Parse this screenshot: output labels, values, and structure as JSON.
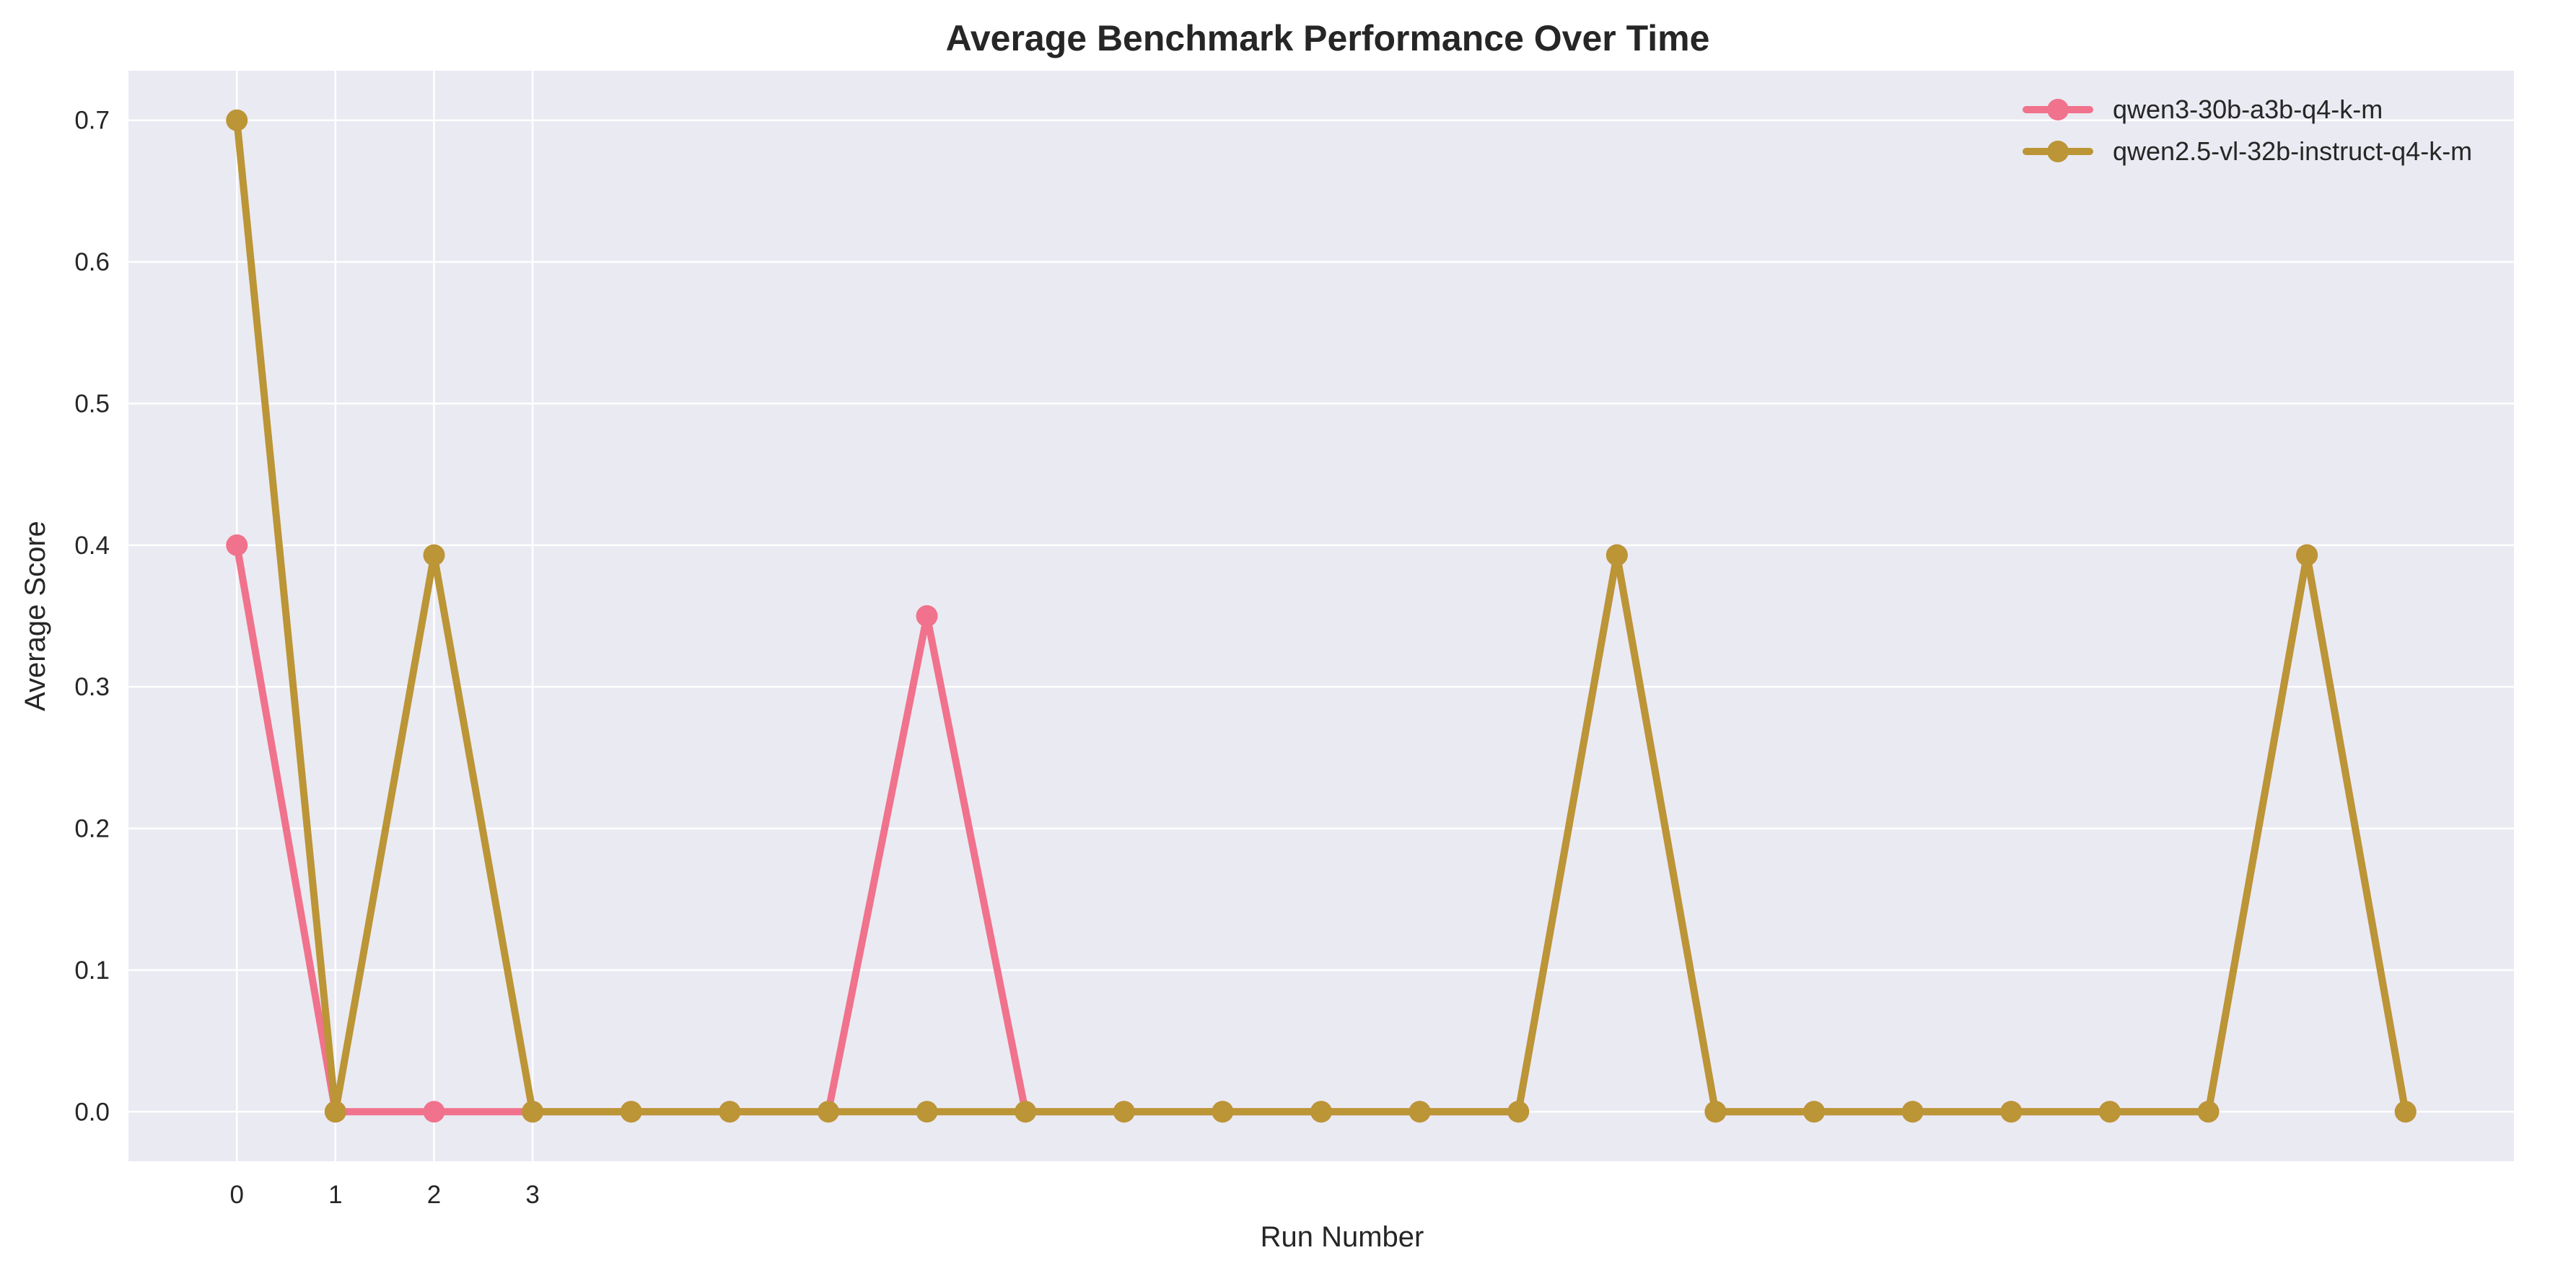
{
  "chart_data": {
    "type": "line",
    "title": "Average Benchmark Performance Over Time",
    "xlabel": "Run Number",
    "ylabel": "Average Score",
    "xlim": [
      -1.1,
      23.1
    ],
    "ylim": [
      -0.035,
      0.735
    ],
    "x_ticks": [
      0,
      1,
      2,
      3
    ],
    "y_ticks": [
      0.0,
      0.1,
      0.2,
      0.3,
      0.4,
      0.5,
      0.6,
      0.7
    ],
    "y_tick_format": 1,
    "grid": true,
    "legend_position": "top-right",
    "background_color": "#eaeaf2",
    "grid_color": "#ffffff",
    "series": [
      {
        "name": "qwen3-30b-a3b-q4-k-m",
        "color": "#f0728c",
        "x": [
          0,
          1,
          2,
          3,
          4,
          5,
          6,
          7,
          8,
          9,
          10,
          11,
          12,
          13,
          14,
          15,
          16,
          17,
          18,
          19,
          20,
          21,
          22
        ],
        "values": [
          0.4,
          0,
          0,
          0,
          0,
          0,
          0,
          0.35,
          0,
          0,
          0,
          0,
          0,
          0,
          0.393,
          0,
          0,
          0,
          0,
          0,
          0,
          0.393,
          0
        ]
      },
      {
        "name": "qwen2.5-vl-32b-instruct-q4-k-m",
        "color": "#bb9536",
        "x": [
          0,
          1,
          2,
          3,
          4,
          5,
          6,
          7,
          8,
          9,
          10,
          11,
          12,
          13,
          14,
          15,
          16,
          17,
          18,
          19,
          20,
          21,
          22
        ],
        "values": [
          0.7,
          0,
          0.393,
          0,
          0,
          0,
          0,
          0,
          0,
          0,
          0,
          0,
          0,
          0,
          0.393,
          0,
          0,
          0,
          0,
          0,
          0,
          0.393,
          0
        ]
      }
    ]
  }
}
